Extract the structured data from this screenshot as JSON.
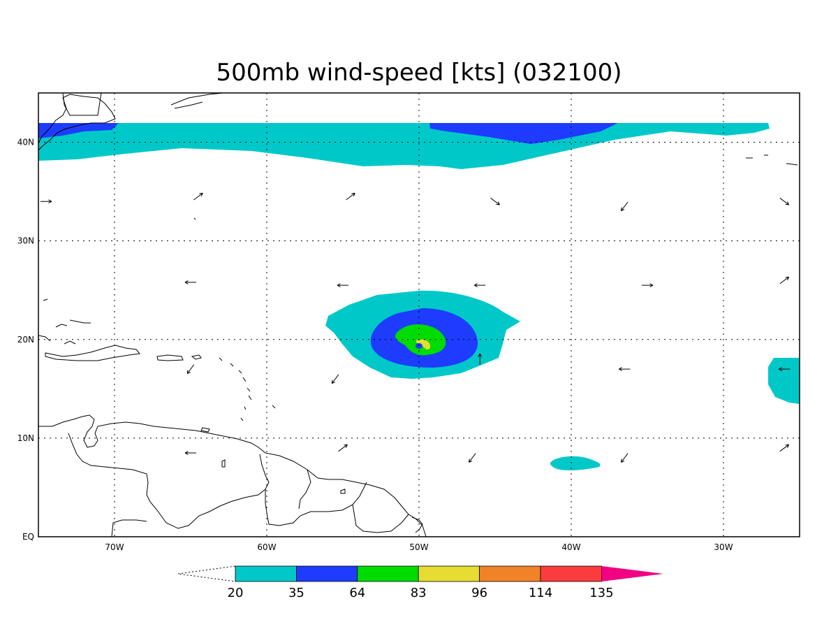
{
  "title": "500mb wind-speed [kts] (032100)",
  "lat_labels": [
    "EQ",
    "10N",
    "20N",
    "30N",
    "40N"
  ],
  "lat_values": [
    0,
    10,
    20,
    30,
    40
  ],
  "lon_labels": [
    "70W",
    "60W",
    "50W",
    "40W",
    "30W"
  ],
  "lon_values": [
    -70,
    -60,
    -50,
    -40,
    -30
  ],
  "extent": {
    "lon": [
      -75,
      -25
    ],
    "lat": [
      0,
      45
    ]
  },
  "colorbar": {
    "labels": [
      "20",
      "35",
      "64",
      "83",
      "96",
      "114",
      "135"
    ],
    "colors": [
      "#00c8c8",
      "#1e3cff",
      "#00dc00",
      "#e6dc32",
      "#f08228",
      "#fa3c3c",
      "#f00082"
    ]
  },
  "wind_vectors": [
    {
      "lon": -64.5,
      "lat": 34.5,
      "dir": "NE"
    },
    {
      "lon": -54.5,
      "lat": 34.5,
      "dir": "NE"
    },
    {
      "lon": -45.0,
      "lat": 34.0,
      "dir": "SE"
    },
    {
      "lon": -36.5,
      "lat": 33.5,
      "dir": "SW"
    },
    {
      "lon": -26.0,
      "lat": 34.0,
      "dir": "SE"
    },
    {
      "lon": -74.5,
      "lat": 34.0,
      "dir": "E"
    },
    {
      "lon": -65.0,
      "lat": 25.8,
      "dir": "W"
    },
    {
      "lon": -55.0,
      "lat": 25.5,
      "dir": "W"
    },
    {
      "lon": -46.0,
      "lat": 25.5,
      "dir": "W"
    },
    {
      "lon": -35.0,
      "lat": 25.5,
      "dir": "E"
    },
    {
      "lon": -26.0,
      "lat": 26.0,
      "dir": "NE"
    },
    {
      "lon": -65.0,
      "lat": 17.0,
      "dir": "SW"
    },
    {
      "lon": -55.5,
      "lat": 16.0,
      "dir": "SW"
    },
    {
      "lon": -46.0,
      "lat": 18.0,
      "dir": "N"
    },
    {
      "lon": -36.5,
      "lat": 17.0,
      "dir": "W"
    },
    {
      "lon": -26.0,
      "lat": 17.0,
      "dir": "W"
    },
    {
      "lon": -65.0,
      "lat": 8.5,
      "dir": "W"
    },
    {
      "lon": -55.0,
      "lat": 9.0,
      "dir": "NE"
    },
    {
      "lon": -46.5,
      "lat": 8.0,
      "dir": "SW"
    },
    {
      "lon": -36.5,
      "lat": 8.0,
      "dir": "SW"
    },
    {
      "lon": -26.0,
      "lat": 9.0,
      "dir": "NE"
    }
  ]
}
